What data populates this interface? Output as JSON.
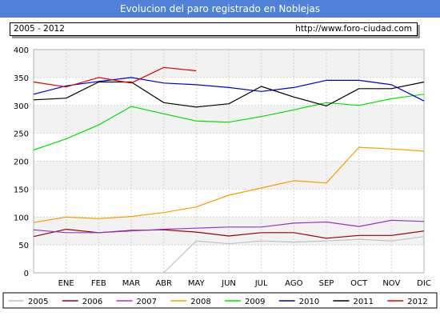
{
  "chart_data": {
    "type": "line",
    "title": "Evolucion del paro registrado en Noblejas",
    "subtitle_left": "2005 - 2012",
    "subtitle_right": "http://www.foro-ciudad.com",
    "categories": [
      "",
      "ENE",
      "FEB",
      "MAR",
      "ABR",
      "MAY",
      "JUN",
      "JUL",
      "AGO",
      "SEP",
      "OCT",
      "NOV",
      "DIC"
    ],
    "ylim": [
      0,
      400
    ],
    "yticks": [
      0,
      50,
      100,
      150,
      200,
      250,
      300,
      350,
      400
    ],
    "grid": true,
    "legend_position": "bottom",
    "series": [
      {
        "name": "2005",
        "color": "#c0c0c0",
        "values": [
          null,
          null,
          null,
          null,
          0,
          57,
          52,
          57,
          55,
          57,
          60,
          57,
          65
        ]
      },
      {
        "name": "2006",
        "color": "#9b0000",
        "values": [
          65,
          78,
          72,
          76,
          77,
          73,
          66,
          72,
          72,
          62,
          67,
          67,
          75
        ]
      },
      {
        "name": "2007",
        "color": "#9933cc",
        "values": [
          77,
          72,
          72,
          75,
          78,
          80,
          82,
          82,
          89,
          91,
          83,
          94,
          92
        ]
      },
      {
        "name": "2008",
        "color": "#ff9900",
        "values": [
          90,
          100,
          97,
          101,
          108,
          118,
          139,
          152,
          165,
          161,
          225,
          222,
          218
        ]
      },
      {
        "name": "2009",
        "color": "#00e000",
        "values": [
          220,
          240,
          265,
          298,
          285,
          272,
          270,
          280,
          292,
          305,
          300,
          312,
          320
        ]
      },
      {
        "name": "2010",
        "color": "#0000cc",
        "values": [
          320,
          335,
          343,
          350,
          340,
          337,
          332,
          325,
          332,
          345,
          345,
          337,
          308
        ]
      },
      {
        "name": "2011",
        "color": "#000000",
        "values": [
          310,
          313,
          342,
          342,
          305,
          297,
          303,
          334,
          315,
          299,
          330,
          330,
          342
        ]
      },
      {
        "name": "2012",
        "color": "#e00000",
        "values": [
          342,
          333,
          350,
          340,
          368,
          362,
          null,
          null,
          null,
          null,
          null,
          null,
          null
        ]
      }
    ]
  }
}
